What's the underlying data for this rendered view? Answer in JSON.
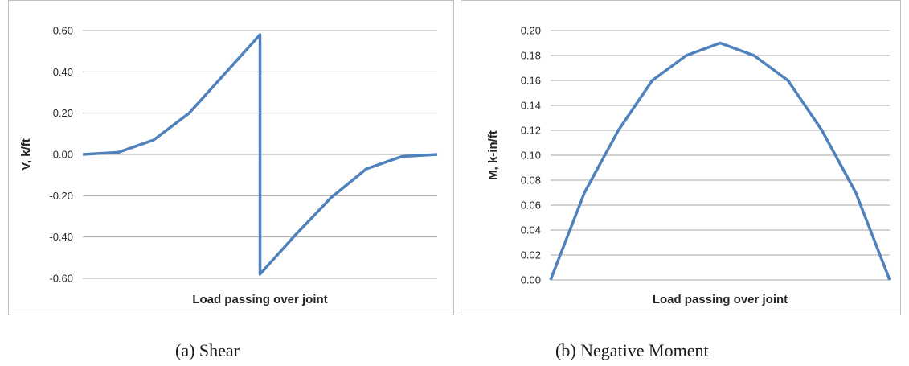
{
  "chart_data": [
    {
      "type": "line",
      "caption": "(a) Shear",
      "xlabel": "Load passing over joint",
      "ylabel": "V,  k/ft",
      "ylim": [
        -0.6,
        0.6
      ],
      "yticks": [
        "0.60",
        "0.40",
        "0.20",
        "0.00",
        "-0.20",
        "-0.40",
        "-0.60"
      ],
      "grid": true,
      "legend": "none",
      "x": [
        0,
        1,
        2,
        3,
        4,
        5,
        5,
        6,
        7,
        8,
        9,
        10
      ],
      "series": [
        {
          "values": [
            0.0,
            0.01,
            0.07,
            0.2,
            0.39,
            0.58,
            -0.58,
            -0.39,
            -0.21,
            -0.07,
            -0.01,
            0.0
          ]
        }
      ]
    },
    {
      "type": "line",
      "caption": "(b) Negative Moment",
      "xlabel": "Load passing over joint",
      "ylabel": "M, k-in/ft",
      "ylim": [
        0.0,
        0.2
      ],
      "yticks": [
        "0.20",
        "0.18",
        "0.16",
        "0.14",
        "0.12",
        "0.10",
        "0.08",
        "0.06",
        "0.04",
        "0.02",
        "0.00"
      ],
      "grid": true,
      "legend": "none",
      "x": [
        0,
        1,
        2,
        3,
        4,
        5,
        6,
        7,
        8,
        9,
        10
      ],
      "series": [
        {
          "values": [
            0.0,
            0.07,
            0.12,
            0.16,
            0.18,
            0.19,
            0.18,
            0.16,
            0.12,
            0.07,
            0.0
          ]
        }
      ]
    }
  ],
  "colors": {
    "series": "#4f81bd",
    "grid": "#a6a6a6",
    "border": "#bfbfbf"
  }
}
